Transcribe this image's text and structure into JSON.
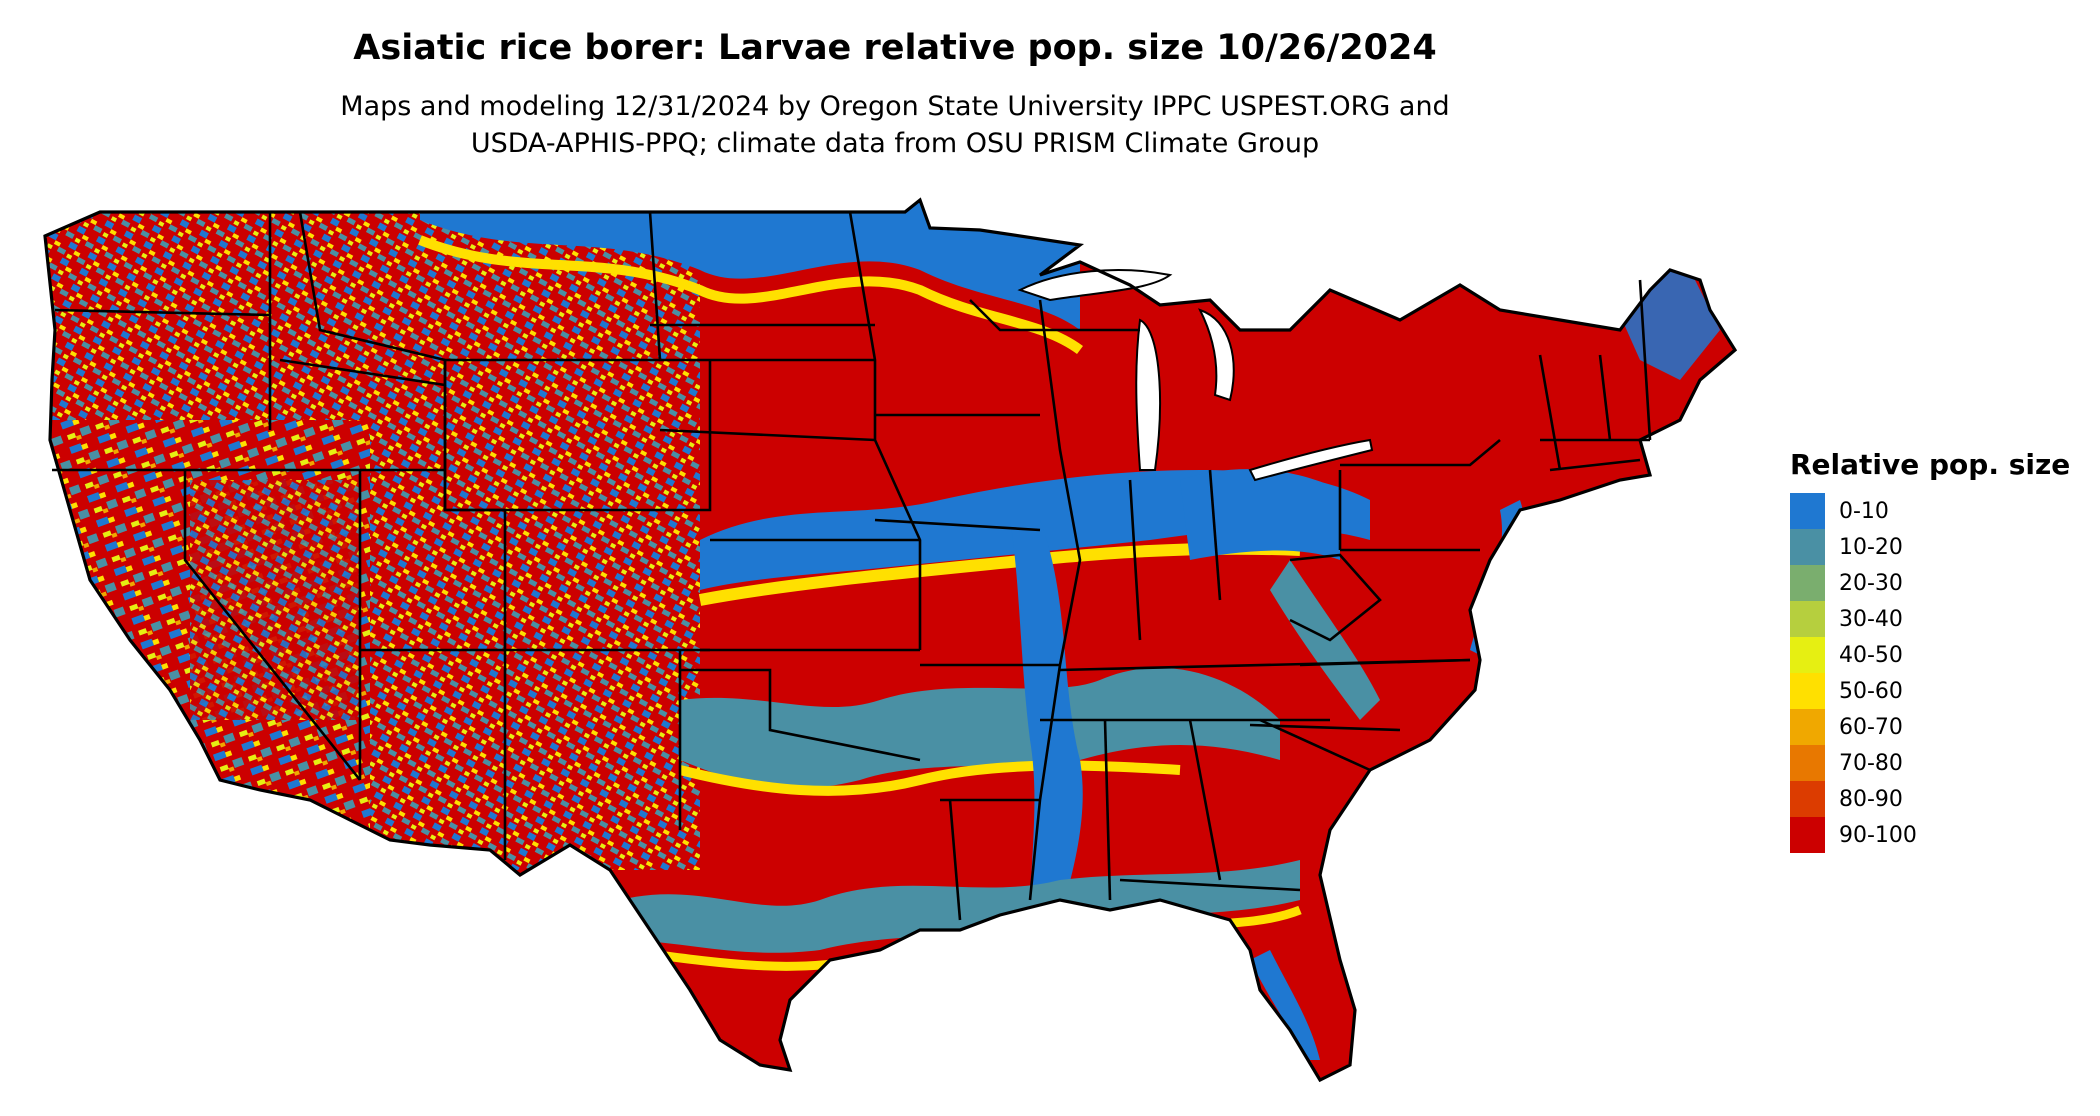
{
  "title": "Asiatic rice borer: Larvae relative pop. size 10/26/2024",
  "subtitle": {
    "line1": "Maps and modeling 12/31/2024 by Oregon State University IPPC USPEST.ORG and",
    "line2": "USDA-APHIS-PPQ; climate data from OSU PRISM Climate Group"
  },
  "map": {
    "region": "contiguous-united-states",
    "boundaries": "state-lines",
    "background": "#ffffff"
  },
  "legend": {
    "title": "Relative pop. size",
    "items": [
      {
        "label": "0-10",
        "color": "#1f78d1"
      },
      {
        "label": "10-20",
        "color": "#4a90a4"
      },
      {
        "label": "20-30",
        "color": "#7aae6e"
      },
      {
        "label": "30-40",
        "color": "#b6cf3e"
      },
      {
        "label": "40-50",
        "color": "#e6ef12"
      },
      {
        "label": "50-60",
        "color": "#ffe000"
      },
      {
        "label": "60-70",
        "color": "#f0a800"
      },
      {
        "label": "70-80",
        "color": "#e87800"
      },
      {
        "label": "80-90",
        "color": "#dc3c00"
      },
      {
        "label": "90-100",
        "color": "#cc0000"
      }
    ]
  }
}
